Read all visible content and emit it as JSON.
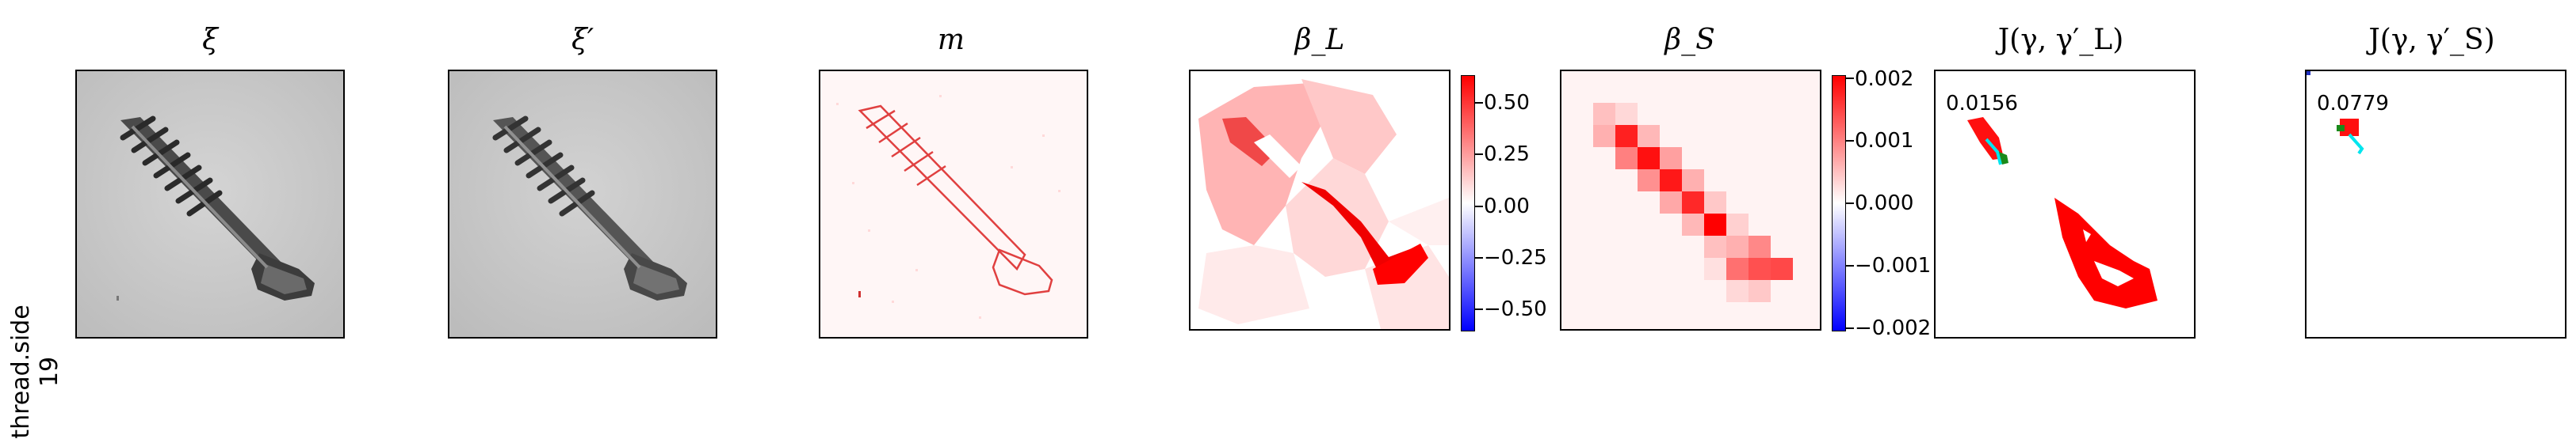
{
  "row_label": {
    "line1": "thread.side",
    "line2": "19"
  },
  "panels": [
    {
      "title": "ξ"
    },
    {
      "title": "ξ′"
    },
    {
      "title": "m"
    },
    {
      "title": "β_L"
    },
    {
      "title": "β_S"
    },
    {
      "title": "J(γ, γ′_L)",
      "value": "0.0156"
    },
    {
      "title": "J(γ, γ′_S)",
      "value": "0.0779"
    }
  ],
  "colorbar_L": {
    "ticks": [
      "0.50",
      "0.25",
      "0.00",
      "−0.25",
      "−0.50"
    ]
  },
  "colorbar_S": {
    "ticks": [
      "0.002",
      "0.001",
      "0.000",
      "−0.001",
      "−0.002"
    ]
  },
  "colors": {
    "positive": "#ff0000",
    "negative": "#0000ff",
    "highlight": "#00e5ee"
  }
}
